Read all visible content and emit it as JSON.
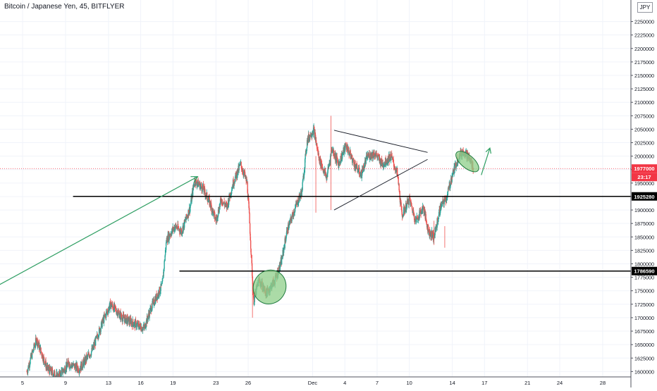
{
  "header": {
    "title": "Bitcoin / Japanese Yen, 45, BITFLYER",
    "currency": "JPY"
  },
  "chart_data": {
    "type": "candlestick",
    "title": "Bitcoin / Japanese Yen, 45, BITFLYER",
    "ylim": [
      1590000,
      2290000
    ],
    "y_ticks": [
      1600000,
      1625000,
      1650000,
      1675000,
      1700000,
      1725000,
      1750000,
      1775000,
      1800000,
      1825000,
      1850000,
      1875000,
      1900000,
      1925000,
      1950000,
      1975000,
      2000000,
      2025000,
      2050000,
      2075000,
      2100000,
      2125000,
      2150000,
      2175000,
      2200000,
      2225000,
      2250000
    ],
    "x_ticks": [
      {
        "label": "5",
        "day": 5
      },
      {
        "label": "9",
        "day": 9
      },
      {
        "label": "13",
        "day": 13
      },
      {
        "label": "16",
        "day": 16
      },
      {
        "label": "19",
        "day": 19
      },
      {
        "label": "23",
        "day": 23
      },
      {
        "label": "26",
        "day": 26
      },
      {
        "label": "Dec",
        "day": 32
      },
      {
        "label": "4",
        "day": 35
      },
      {
        "label": "7",
        "day": 38
      },
      {
        "label": "10",
        "day": 41
      },
      {
        "label": "14",
        "day": 45
      },
      {
        "label": "17",
        "day": 48
      },
      {
        "label": "21",
        "day": 52
      },
      {
        "label": "24",
        "day": 55
      },
      {
        "label": "28",
        "day": 59
      }
    ],
    "price_path": [
      [
        5.4,
        1600000
      ],
      [
        6.3,
        1660000
      ],
      [
        7.3,
        1605000
      ],
      [
        8.3,
        1590000
      ],
      [
        9.3,
        1615000
      ],
      [
        10.3,
        1605000
      ],
      [
        11.5,
        1640000
      ],
      [
        12.5,
        1695000
      ],
      [
        13.2,
        1725000
      ],
      [
        14.3,
        1700000
      ],
      [
        15.3,
        1690000
      ],
      [
        16.3,
        1680000
      ],
      [
        17.0,
        1720000
      ],
      [
        18.0,
        1760000
      ],
      [
        18.4,
        1845000
      ],
      [
        19.2,
        1870000
      ],
      [
        19.8,
        1860000
      ],
      [
        20.6,
        1905000
      ],
      [
        21.0,
        1955000
      ],
      [
        21.8,
        1940000
      ],
      [
        22.5,
        1910000
      ],
      [
        23.0,
        1880000
      ],
      [
        23.5,
        1920000
      ],
      [
        24.0,
        1905000
      ],
      [
        24.6,
        1950000
      ],
      [
        25.3,
        1985000
      ],
      [
        25.9,
        1950000
      ],
      [
        26.1,
        1890000
      ],
      [
        26.5,
        1730000
      ],
      [
        27.0,
        1770000
      ],
      [
        27.7,
        1745000
      ],
      [
        28.5,
        1770000
      ],
      [
        29.1,
        1805000
      ],
      [
        29.6,
        1860000
      ],
      [
        30.4,
        1905000
      ],
      [
        31.0,
        1935000
      ],
      [
        31.5,
        2030000
      ],
      [
        32.1,
        2050000
      ],
      [
        32.6,
        1995000
      ],
      [
        33.3,
        1960000
      ],
      [
        33.8,
        2015000
      ],
      [
        34.4,
        1985000
      ],
      [
        35.1,
        2020000
      ],
      [
        35.9,
        1985000
      ],
      [
        36.5,
        1965000
      ],
      [
        37.1,
        2000000
      ],
      [
        37.8,
        2005000
      ],
      [
        38.5,
        1985000
      ],
      [
        39.3,
        2000000
      ],
      [
        39.9,
        1965000
      ],
      [
        40.3,
        1890000
      ],
      [
        41.0,
        1920000
      ],
      [
        41.6,
        1880000
      ],
      [
        42.3,
        1905000
      ],
      [
        42.8,
        1860000
      ],
      [
        43.3,
        1850000
      ],
      [
        43.9,
        1905000
      ],
      [
        44.5,
        1925000
      ],
      [
        45.0,
        1965000
      ],
      [
        45.6,
        2000000
      ],
      [
        46.1,
        2010000
      ],
      [
        46.6,
        1995000
      ],
      [
        47.0,
        1977000
      ]
    ],
    "current_price": 1977000,
    "countdown": "23:17",
    "horizontal_levels": [
      {
        "price": 1925280,
        "label": "1925280",
        "x_start": 9.7
      },
      {
        "price": 1786590,
        "label": "1786590",
        "x_start": 19.6
      }
    ],
    "annotations": {
      "trend_arrow": {
        "from": [
          2.0,
          1752000
        ],
        "to": [
          21.3,
          1962000
        ]
      },
      "triangle_upper": {
        "from": [
          34.0,
          2048000
        ],
        "to": [
          42.7,
          2007000
        ]
      },
      "triangle_lower": {
        "from": [
          34.0,
          1900000
        ],
        "to": [
          42.7,
          1994000
        ]
      },
      "ellipse_low": {
        "center": [
          28.0,
          1757000
        ],
        "rx_days": 1.5,
        "ry_price": 32000,
        "angle": -60
      },
      "ellipse_high": {
        "center": [
          46.4,
          1990000
        ],
        "rx_days": 1.3,
        "ry_price": 12000,
        "angle": 40
      },
      "up_arrow": {
        "from": [
          47.7,
          1965000
        ],
        "to": [
          48.5,
          2015000
        ]
      }
    },
    "colors": {
      "up": "#26a69a",
      "down": "#ef5350",
      "annotation": "#2e9e62",
      "ellipse_fill": "#8fcf8a",
      "level_line": "#000000",
      "current_price": "#f23645",
      "grid": "#f0f3fa"
    }
  }
}
